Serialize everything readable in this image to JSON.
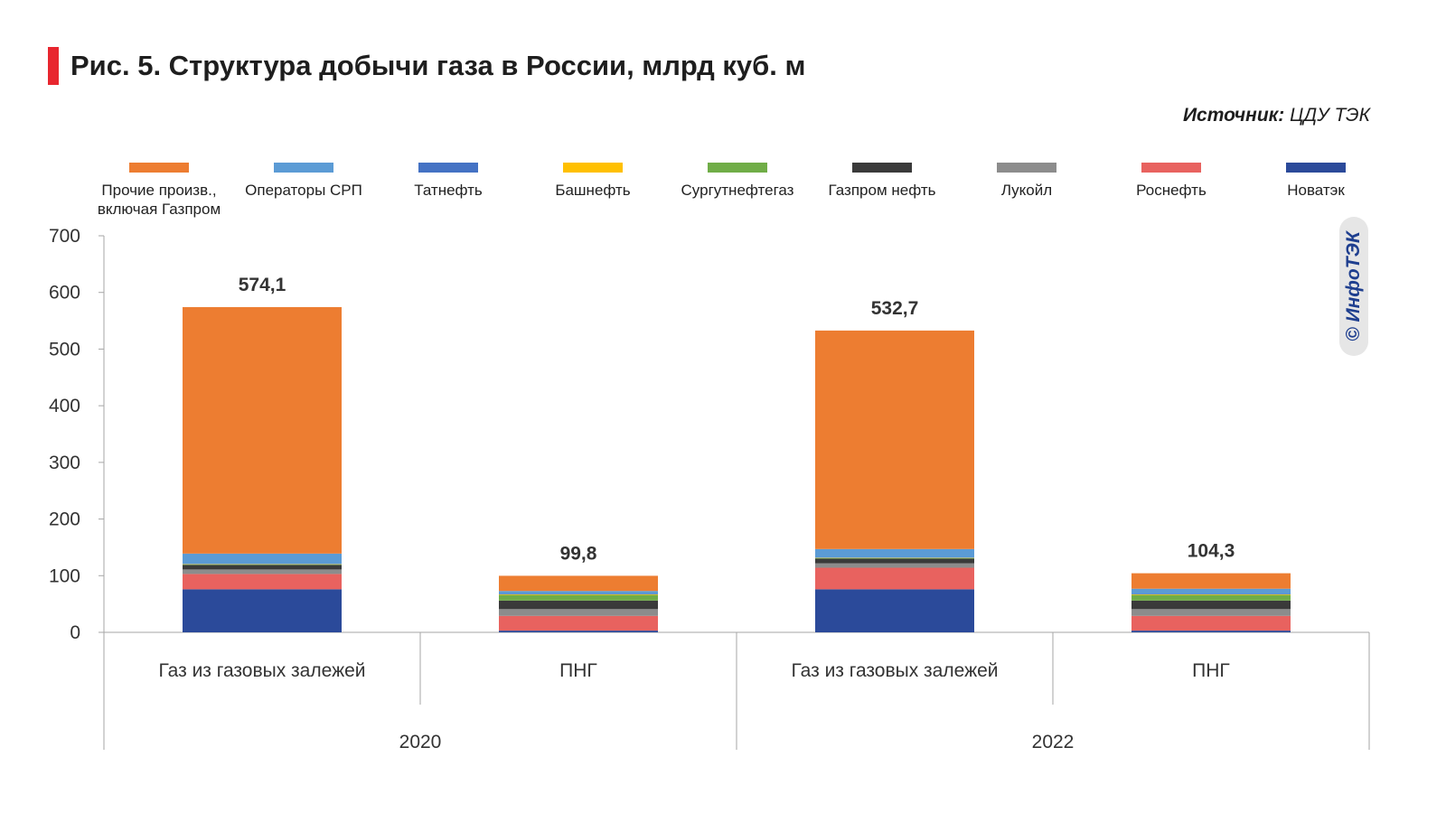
{
  "title": "Рис. 5. Структура добычи газа в России, млрд куб. м",
  "source": {
    "label": "Источник:",
    "value": "ЦДУ ТЭК"
  },
  "watermark": "© ИнфоТЭК",
  "legend": [
    {
      "label": "Прочие произв., включая Газпром",
      "color": "#ed7d31"
    },
    {
      "label": "Операторы СРП",
      "color": "#5b9bd5"
    },
    {
      "label": "Татнефть",
      "color": "#4472c4"
    },
    {
      "label": "Башнефть",
      "color": "#ffc000"
    },
    {
      "label": "Сургутнефтегаз",
      "color": "#70ad47"
    },
    {
      "label": "Газпром нефть",
      "color": "#3a3a3a"
    },
    {
      "label": "Лукойл",
      "color": "#8c8c8c"
    },
    {
      "label": "Роснефть",
      "color": "#e8625f"
    },
    {
      "label": "Новатэк",
      "color": "#2b4a9a"
    }
  ],
  "chart_data": {
    "type": "bar",
    "stacked": true,
    "title": "Рис. 5. Структура добычи газа в России, млрд куб. м",
    "ylim": [
      0,
      700
    ],
    "yticks": [
      0,
      100,
      200,
      300,
      400,
      500,
      600,
      700
    ],
    "categories": [
      "Газ из газовых залежей",
      "ПНГ",
      "Газ из газовых залежей",
      "ПНГ"
    ],
    "groups": [
      {
        "label": "2020",
        "categories": [
          0,
          1
        ]
      },
      {
        "label": "2022",
        "categories": [
          2,
          3
        ]
      }
    ],
    "totals": [
      574.1,
      99.8,
      532.7,
      104.3
    ],
    "total_labels": [
      "574,1",
      "99,8",
      "532,7",
      "104,3"
    ],
    "series": [
      {
        "name": "Новатэк",
        "values": [
          76,
          3,
          76,
          3
        ]
      },
      {
        "name": "Роснефть",
        "values": [
          27,
          26,
          38,
          26
        ]
      },
      {
        "name": "Лукойл",
        "values": [
          8,
          12,
          8,
          12
        ]
      },
      {
        "name": "Газпром нефть",
        "values": [
          8,
          15,
          8,
          15
        ]
      },
      {
        "name": "Сургутнефтегаз",
        "values": [
          1,
          10,
          1,
          10
        ]
      },
      {
        "name": "Башнефть",
        "values": [
          0.5,
          1,
          0.5,
          1
        ]
      },
      {
        "name": "Татнефть",
        "values": [
          0.5,
          1,
          0.5,
          1
        ]
      },
      {
        "name": "Операторы СРП",
        "values": [
          18,
          5,
          15,
          9
        ]
      },
      {
        "name": "Прочие произв., включая Газпром",
        "values": [
          435.1,
          26.8,
          385.7,
          27.3
        ]
      }
    ]
  }
}
